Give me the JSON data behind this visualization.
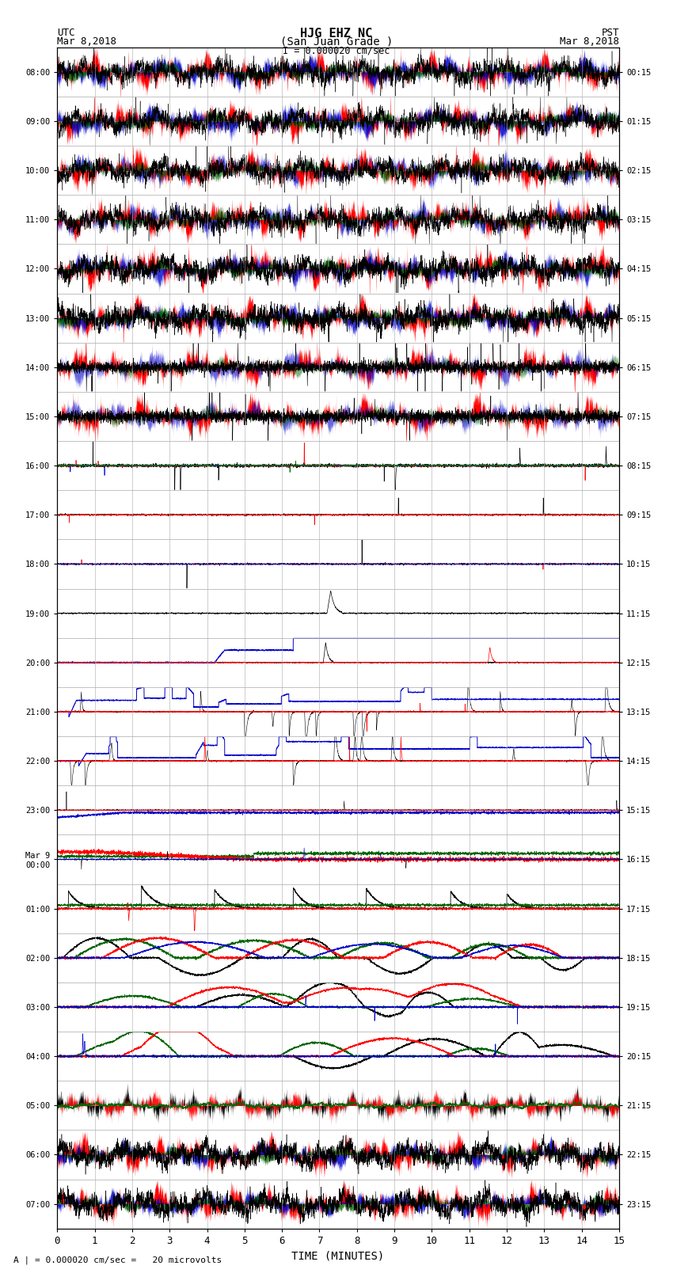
{
  "title_line1": "HJG EHZ NC",
  "title_line2": "(San Juan Grade )",
  "title_line3": "I = 0.000020 cm/sec",
  "left_label_top": "UTC",
  "left_label_date": "Mar 8,2018",
  "right_label_top": "PST",
  "right_label_date": "Mar 8,2018",
  "bottom_label": "TIME (MINUTES)",
  "bottom_note": "A | = 0.000020 cm/sec =   20 microvolts",
  "xlabel_ticks": [
    0,
    1,
    2,
    3,
    4,
    5,
    6,
    7,
    8,
    9,
    10,
    11,
    12,
    13,
    14,
    15
  ],
  "left_yticks_labels": [
    "08:00",
    "09:00",
    "10:00",
    "11:00",
    "12:00",
    "13:00",
    "14:00",
    "15:00",
    "16:00",
    "17:00",
    "18:00",
    "19:00",
    "20:00",
    "21:00",
    "22:00",
    "23:00",
    "Mar 9\n00:00",
    "01:00",
    "02:00",
    "03:00",
    "04:00",
    "05:00",
    "06:00",
    "07:00"
  ],
  "right_yticks_labels": [
    "00:15",
    "01:15",
    "02:15",
    "03:15",
    "04:15",
    "05:15",
    "06:15",
    "07:15",
    "08:15",
    "09:15",
    "10:15",
    "11:15",
    "12:15",
    "13:15",
    "14:15",
    "15:15",
    "16:15",
    "17:15",
    "18:15",
    "19:15",
    "20:15",
    "21:15",
    "22:15",
    "23:15"
  ],
  "num_rows": 24,
  "num_cols": 15,
  "bg_color": "white",
  "grid_color": "#aaaaaa",
  "colors": {
    "black": "#000000",
    "red": "#ff0000",
    "blue": "#0000cc",
    "green": "#006400"
  },
  "figsize": [
    8.5,
    16.13
  ],
  "dpi": 100
}
